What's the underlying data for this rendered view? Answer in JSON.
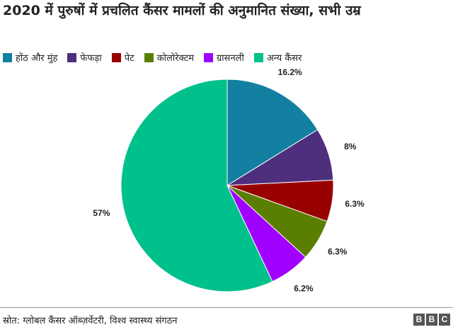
{
  "chart_data": {
    "type": "pie",
    "title": "2020 में पुरुषों में प्रचलित कैंसर मामलों की अनुमानित संख्या, सभी उम्र",
    "categories": [
      "होंठ और मुंह",
      "फेफड़ा",
      "पेट",
      "कोलोरेक्टम",
      "ग्रासनली",
      "अन्य कैंसर"
    ],
    "values": [
      16.2,
      8,
      6.3,
      6.3,
      6.2,
      57
    ],
    "value_labels": [
      "16.2%",
      "8%",
      "6.3%",
      "6.3%",
      "6.2%",
      "57%"
    ],
    "colors": [
      "#1380a1",
      "#4e2f7d",
      "#990000",
      "#5a7f00",
      "#a000ff",
      "#00c08b"
    ],
    "source": "स्रोत: ग्लोबल कैंसर ऑब्ज़र्वेटरी, विश्व स्वास्थ्य संगठन",
    "logo": "BBC"
  }
}
